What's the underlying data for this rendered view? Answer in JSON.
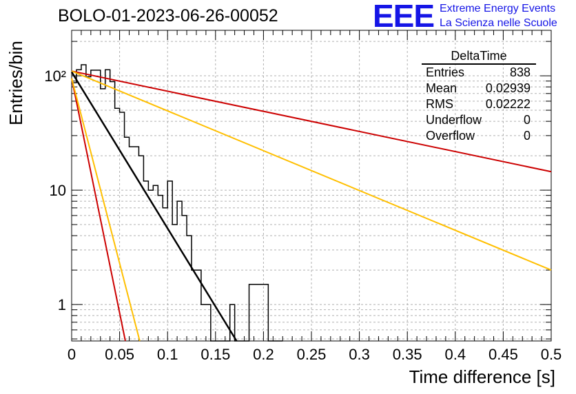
{
  "header": {
    "title": "BOLO-01-2023-06-26-00052",
    "logo_text": "EEE",
    "org_line1": "Extreme Energy Events",
    "org_line2": "La Scienza nelle Scuole"
  },
  "stats_box": {
    "name": "DeltaTime",
    "rows": [
      {
        "label": "Entries",
        "value": "838"
      },
      {
        "label": "Mean",
        "value": "0.02939"
      },
      {
        "label": "RMS",
        "value": "0.02222"
      },
      {
        "label": "Underflow",
        "value": "0"
      },
      {
        "label": "Overflow",
        "value": "0"
      }
    ]
  },
  "chart_data": {
    "type": "line",
    "xlabel": "Time difference [s]",
    "ylabel": "Entries/bin",
    "xlim": [
      0,
      0.5
    ],
    "ylim": [
      0.48,
      250
    ],
    "yscale": "log",
    "grid": true,
    "x_ticks": [
      0,
      0.05,
      0.1,
      0.15,
      0.2,
      0.25,
      0.3,
      0.35,
      0.4,
      0.45,
      0.5
    ],
    "x_tick_labels": [
      "0",
      "0.05",
      "0.1",
      "0.15",
      "0.2",
      "0.25",
      "0.3",
      "0.35",
      "0.4",
      "0.45",
      "0.5"
    ],
    "y_ticks": [
      1,
      10,
      100
    ],
    "y_tick_labels": [
      "1",
      "10",
      "10²"
    ],
    "histogram": {
      "name": "DeltaTime",
      "color": "#000000",
      "bin_width": 0.005,
      "bin_start": 0,
      "counts": [
        87,
        113,
        125,
        98,
        112,
        112,
        77,
        113,
        89,
        52,
        48,
        29,
        24,
        24,
        20,
        12,
        10,
        11,
        9,
        7,
        12,
        5,
        8,
        6,
        4,
        2,
        2,
        1,
        1,
        0,
        0.3,
        0.3,
        0.3,
        1,
        0.3,
        0.3,
        0.3,
        1.5,
        1.5,
        1.5,
        1.5,
        0.3,
        0.3,
        0.3
      ]
    },
    "series": [
      {
        "color": "#cc0000",
        "x": [
          0,
          0.5
        ],
        "y": [
          110,
          14.5
        ]
      },
      {
        "color": "#ffbf00",
        "x": [
          0,
          0.5
        ],
        "y": [
          110,
          2.0
        ]
      },
      {
        "color": "#000000",
        "x": [
          0,
          0.172
        ],
        "y": [
          108,
          0.48
        ]
      },
      {
        "color": "#cc0000",
        "x": [
          0,
          0.056
        ],
        "y": [
          95,
          0.48
        ]
      },
      {
        "color": "#ffbf00",
        "x": [
          0,
          0.071
        ],
        "y": [
          95,
          0.48
        ]
      }
    ]
  }
}
